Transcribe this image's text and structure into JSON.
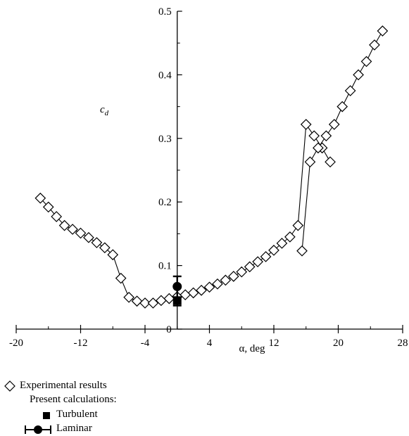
{
  "chart_data": {
    "type": "scatter",
    "xlabel": "α, deg",
    "ylabel": "c_d",
    "xlim": [
      -20,
      28
    ],
    "ylim": [
      0,
      0.5
    ],
    "x_ticks": [
      -20,
      -12,
      -4,
      4,
      12,
      20,
      28
    ],
    "y_ticks": [
      0,
      0.1,
      0.2,
      0.3,
      0.4,
      0.5
    ],
    "y_tick_labels": [
      "0",
      "0.1",
      "0.2",
      "0.3",
      "0.4",
      "0.5"
    ],
    "grid": false,
    "legend_position": "bottom-left",
    "series": [
      {
        "name": "Experimental results",
        "marker": "diamond-open",
        "line": true,
        "x": [
          -17,
          -16,
          -15,
          -14,
          -13,
          -12,
          -11,
          -10,
          -9,
          -8,
          -7,
          -6,
          -5,
          -4,
          -3,
          -2,
          -1,
          0,
          1,
          2,
          3,
          4,
          5,
          6,
          7,
          8,
          9,
          10,
          11,
          12,
          13,
          14,
          15,
          16,
          17,
          18,
          19
        ],
        "y": [
          0.206,
          0.192,
          0.177,
          0.163,
          0.157,
          0.151,
          0.144,
          0.136,
          0.128,
          0.117,
          0.08,
          0.05,
          0.044,
          0.041,
          0.041,
          0.045,
          0.048,
          0.051,
          0.054,
          0.057,
          0.061,
          0.066,
          0.071,
          0.077,
          0.083,
          0.09,
          0.098,
          0.106,
          0.114,
          0.124,
          0.135,
          0.145,
          0.163,
          0.322,
          0.304,
          0.285,
          0.263
        ]
      },
      {
        "name": "Experimental results",
        "marker": "diamond-open",
        "line": true,
        "x": [
          15.5,
          16.5,
          17.5,
          18.5,
          19.5,
          20.5,
          21.5,
          22.5,
          23.5,
          24.5,
          25.5
        ],
        "y": [
          0.123,
          0.263,
          0.285,
          0.304,
          0.322,
          0.35,
          0.375,
          0.4,
          0.421,
          0.447,
          0.469
        ]
      },
      {
        "name": "Turbulent",
        "marker": "square-filled",
        "line": false,
        "x": [
          0
        ],
        "y": [
          0.045
        ]
      },
      {
        "name": "Laminar",
        "marker": "circle-filled",
        "line": false,
        "errorbar": true,
        "x": [
          0
        ],
        "y": [
          0.067
        ],
        "y_err_low": [
          0.037
        ],
        "y_err_high": [
          0.083
        ]
      }
    ]
  },
  "legend": {
    "experimental": "Experimental results",
    "present": "Present calculations:",
    "turbulent": "Turbulent",
    "laminar": "Laminar"
  }
}
